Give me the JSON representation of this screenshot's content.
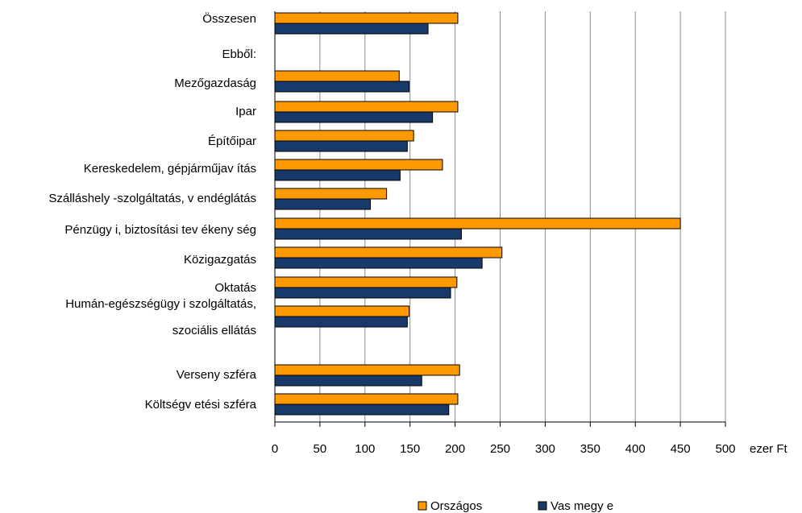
{
  "chart_data": {
    "type": "bar",
    "orientation": "horizontal",
    "categories": [
      "Összesen",
      "Ebből:",
      "Mezőgazdaság",
      "Ipar",
      "Építőipar",
      "Kereskedelem, gépjárműjav ítás",
      "Szálláshely -szolgáltatás, v endéglátás",
      "Pénzügy i, biztosítási tev ékeny ség",
      "Közigazgatás",
      "Oktatás",
      "Humán-egészségügy i szolgáltatás,\nszociális ellátás",
      "",
      "Verseny szféra",
      "Költségv etési szféra"
    ],
    "series": [
      {
        "name": "Országos",
        "color": "#ff9900",
        "values": [
          203,
          null,
          138,
          203,
          154,
          186,
          124,
          450,
          252,
          202,
          149,
          null,
          205,
          203
        ]
      },
      {
        "name": "Vas megy e",
        "color": "#183a6a",
        "values": [
          170,
          null,
          149,
          175,
          147,
          139,
          106,
          207,
          230,
          195,
          147,
          null,
          163,
          193
        ]
      }
    ],
    "xlim": [
      0,
      500
    ],
    "xticks": [
      "0",
      "50",
      "100",
      "150",
      "200",
      "250",
      "300",
      "350",
      "400",
      "450",
      "500"
    ],
    "xunit": "ezer Ft",
    "grid": true,
    "legend": "bottom"
  }
}
